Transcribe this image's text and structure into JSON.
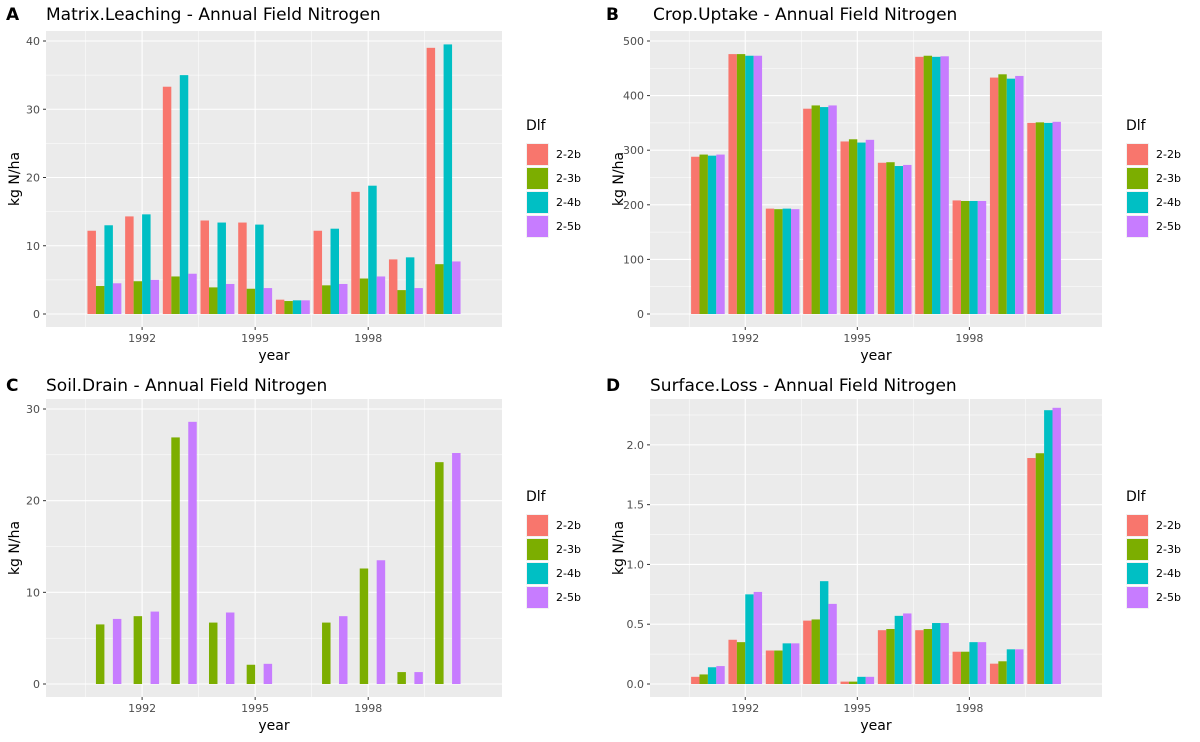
{
  "legend": {
    "title": "Dlf",
    "entries": [
      {
        "name": "2-2b",
        "color": "#F8766D"
      },
      {
        "name": "2-3b",
        "color": "#7CAE00"
      },
      {
        "name": "2-4b",
        "color": "#00BFC4"
      },
      {
        "name": "2-5b",
        "color": "#C77CFF"
      }
    ]
  },
  "colors": {
    "panel_bg": "#EBEBEB",
    "grid": "#FFFFFF",
    "tick_text": "#4D4D4D"
  },
  "chart_data": [
    {
      "type": "bar",
      "panel_label": "A",
      "title": "Matrix.Leaching - Annual Field Nitrogen",
      "xlabel": "year",
      "ylabel": "kg N/ha",
      "ylim": [
        0,
        40
      ],
      "yticks": [
        0,
        10,
        20,
        30,
        40
      ],
      "xticks": [
        "1992",
        "1995",
        "1998"
      ],
      "categories": [
        "1991",
        "1992",
        "1993",
        "1994",
        "1995",
        "1996",
        "1997",
        "1998",
        "1999",
        "2000"
      ],
      "series": [
        {
          "name": "2-2b",
          "values": [
            12.2,
            14.3,
            33.3,
            13.7,
            13.4,
            2.1,
            12.2,
            17.9,
            8.0,
            39.0
          ]
        },
        {
          "name": "2-3b",
          "values": [
            4.1,
            4.8,
            5.5,
            3.9,
            3.7,
            1.9,
            4.2,
            5.2,
            3.5,
            7.3
          ]
        },
        {
          "name": "2-4b",
          "values": [
            13.0,
            14.6,
            35.0,
            13.4,
            13.1,
            2.0,
            12.5,
            18.8,
            8.3,
            39.5
          ]
        },
        {
          "name": "2-5b",
          "values": [
            4.5,
            5.0,
            5.9,
            4.4,
            3.8,
            2.0,
            4.4,
            5.5,
            3.8,
            7.7
          ]
        }
      ],
      "grid": true,
      "legend_position": "right"
    },
    {
      "type": "bar",
      "panel_label": "B",
      "title": "Crop.Uptake - Annual Field Nitrogen",
      "xlabel": "year",
      "ylabel": "kg N/ha",
      "ylim": [
        0,
        500
      ],
      "yticks": [
        0,
        100,
        200,
        300,
        400,
        500
      ],
      "xticks": [
        "1992",
        "1995",
        "1998"
      ],
      "categories": [
        "1991",
        "1992",
        "1993",
        "1994",
        "1995",
        "1996",
        "1997",
        "1998",
        "1999",
        "2000"
      ],
      "series": [
        {
          "name": "2-2b",
          "values": [
            288,
            476,
            193,
            376,
            316,
            277,
            471,
            208,
            433,
            350
          ]
        },
        {
          "name": "2-3b",
          "values": [
            292,
            476,
            192,
            382,
            320,
            278,
            473,
            207,
            439,
            351
          ]
        },
        {
          "name": "2-4b",
          "values": [
            290,
            473,
            193,
            379,
            314,
            271,
            471,
            207,
            431,
            350
          ]
        },
        {
          "name": "2-5b",
          "values": [
            292,
            473,
            192,
            382,
            319,
            273,
            472,
            207,
            436,
            352
          ]
        }
      ],
      "grid": true,
      "legend_position": "right"
    },
    {
      "type": "bar",
      "panel_label": "C",
      "title": "Soil.Drain - Annual Field Nitrogen",
      "xlabel": "year",
      "ylabel": "kg N/ha",
      "ylim": [
        0,
        30
      ],
      "yticks": [
        0,
        10,
        20,
        30
      ],
      "xticks": [
        "1992",
        "1995",
        "1998"
      ],
      "categories": [
        "1991",
        "1992",
        "1993",
        "1994",
        "1995",
        "1996",
        "1997",
        "1998",
        "1999",
        "2000"
      ],
      "series": [
        {
          "name": "2-2b",
          "values": [
            0,
            0,
            0,
            0,
            0,
            0,
            0,
            0,
            0,
            0
          ]
        },
        {
          "name": "2-3b",
          "values": [
            6.5,
            7.4,
            26.9,
            6.7,
            2.1,
            0,
            6.7,
            12.6,
            1.3,
            24.2
          ]
        },
        {
          "name": "2-4b",
          "values": [
            0,
            0,
            0,
            0,
            0,
            0,
            0,
            0,
            0,
            0
          ]
        },
        {
          "name": "2-5b",
          "values": [
            7.1,
            7.9,
            28.6,
            7.8,
            2.2,
            0,
            7.4,
            13.5,
            1.3,
            25.2
          ]
        }
      ],
      "grid": true,
      "legend_position": "right"
    },
    {
      "type": "bar",
      "panel_label": "D",
      "title": "Surface.Loss - Annual Field Nitrogen",
      "xlabel": "year",
      "ylabel": "kg N/ha",
      "ylim": [
        0,
        2.3
      ],
      "yticks": [
        0.0,
        0.5,
        1.0,
        1.5,
        2.0
      ],
      "ytick_labels": [
        "0.0",
        "0.5",
        "1.0",
        "1.5",
        "2.0"
      ],
      "xticks": [
        "1992",
        "1995",
        "1998"
      ],
      "categories": [
        "1991",
        "1992",
        "1993",
        "1994",
        "1995",
        "1996",
        "1997",
        "1998",
        "1999",
        "2000"
      ],
      "series": [
        {
          "name": "2-2b",
          "values": [
            0.06,
            0.37,
            0.28,
            0.53,
            0.02,
            0.45,
            0.45,
            0.27,
            0.17,
            1.89
          ]
        },
        {
          "name": "2-3b",
          "values": [
            0.08,
            0.35,
            0.28,
            0.54,
            0.02,
            0.46,
            0.46,
            0.27,
            0.19,
            1.93
          ]
        },
        {
          "name": "2-4b",
          "values": [
            0.14,
            0.75,
            0.34,
            0.86,
            0.06,
            0.57,
            0.51,
            0.35,
            0.29,
            2.29
          ]
        },
        {
          "name": "2-5b",
          "values": [
            0.15,
            0.77,
            0.34,
            0.67,
            0.06,
            0.59,
            0.51,
            0.35,
            0.29,
            2.31
          ]
        }
      ],
      "grid": true,
      "legend_position": "right"
    }
  ]
}
